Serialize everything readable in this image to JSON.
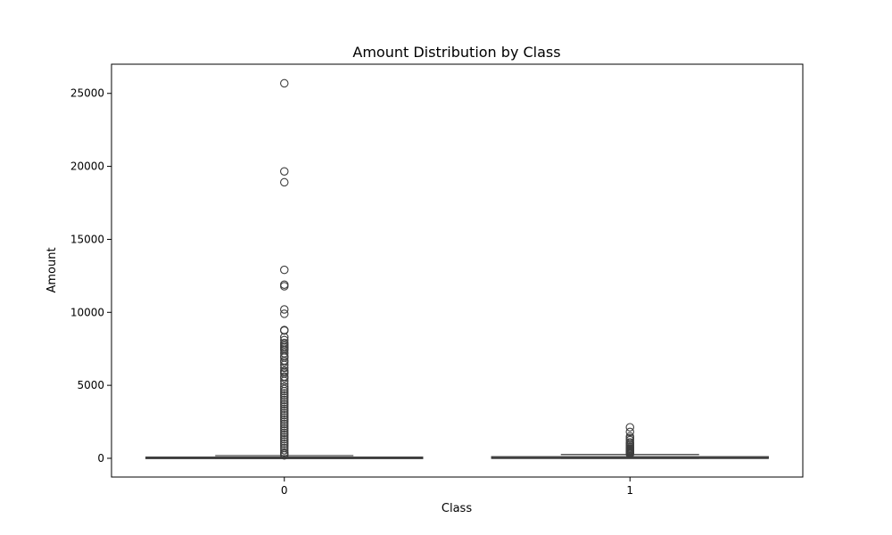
{
  "chart_data": {
    "type": "box",
    "title": "Amount Distribution by Class",
    "xlabel": "Class",
    "ylabel": "Amount",
    "categories": [
      "0",
      "1"
    ],
    "ylim": [
      -1284,
      27000
    ],
    "yticks": [
      0,
      5000,
      10000,
      15000,
      20000,
      25000
    ],
    "grid": false,
    "legend": "none",
    "colors": {
      "box": "#3d3d3d",
      "outlier": "#3d3d3d",
      "frame": "#000000"
    },
    "boxes": [
      {
        "category": "0",
        "q1": 5.6,
        "median": 22,
        "q3": 77,
        "whisker_low": 0,
        "whisker_high": 185,
        "outliers": [
          25691,
          19656,
          18910,
          12910,
          11898,
          11790,
          10199,
          9900,
          8790,
          8750,
          8300,
          8100,
          7900,
          7800,
          7700,
          7600,
          7500,
          7400,
          7200,
          7000,
          6900,
          6700,
          6600,
          6400,
          6200,
          6000,
          5900,
          5800,
          5600,
          5500,
          5300,
          5100,
          4900,
          4750,
          4600,
          4450,
          4300,
          4150,
          4000,
          3850,
          3700,
          3550,
          3400,
          3250,
          3100,
          2950,
          2800,
          2650,
          2500,
          2350,
          2200,
          2050,
          1900,
          1750,
          1600,
          1450,
          1300,
          1150,
          1000,
          850,
          700,
          550,
          400,
          300,
          200
        ]
      },
      {
        "category": "1",
        "q1": 1,
        "median": 9,
        "q3": 105,
        "whisker_low": 0,
        "whisker_high": 260,
        "outliers": [
          2125,
          1810,
          1500,
          1380,
          1250,
          1100,
          1000,
          900,
          800,
          720,
          650,
          580,
          520,
          470,
          420,
          370,
          330,
          290
        ]
      }
    ]
  }
}
